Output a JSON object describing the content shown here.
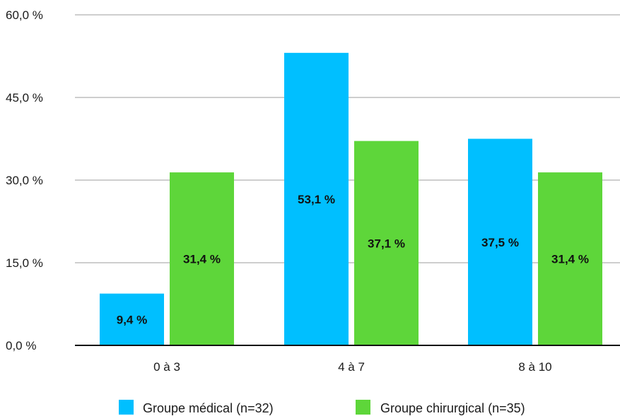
{
  "chart_data": {
    "type": "bar",
    "categories": [
      "0 à 3",
      "4 à 7",
      "8 à 10"
    ],
    "series": [
      {
        "name": "Groupe médical (n=32)",
        "values": [
          9.4,
          53.1,
          37.5
        ],
        "labels": [
          "9,4 %",
          "53,1 %",
          "37,5 %"
        ],
        "color": "#00bfff"
      },
      {
        "name": "Groupe chirurgical (n=35)",
        "values": [
          31.4,
          37.1,
          31.4
        ],
        "labels": [
          "31,4 %",
          "37,1 %",
          "31,4 %"
        ],
        "color": "#5ed63a"
      }
    ],
    "y_ticks": [
      0,
      15,
      30,
      45,
      60
    ],
    "y_tick_labels": [
      "0,0 %",
      "15,0 %",
      "30,0 %",
      "45,0 %",
      "60,0 %"
    ],
    "ylim": [
      0,
      60
    ],
    "title": "",
    "xlabel": "",
    "ylabel": "",
    "grid": true,
    "legend_position": "bottom"
  }
}
